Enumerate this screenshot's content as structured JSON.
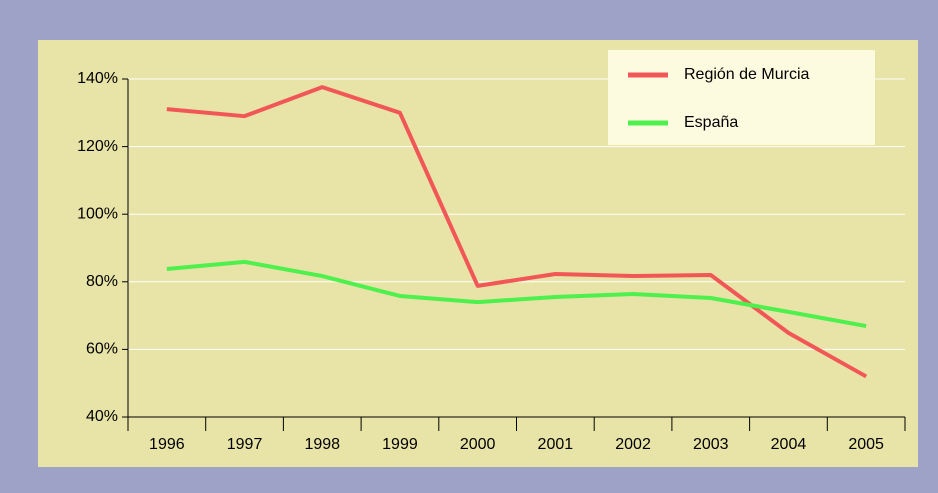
{
  "chart_data": {
    "type": "line",
    "categories": [
      "1996",
      "1997",
      "1998",
      "1999",
      "2000",
      "2001",
      "2002",
      "2003",
      "2004",
      "2005"
    ],
    "series": [
      {
        "name": "Región de Murcia",
        "color": "#f25757",
        "values": [
          131.1,
          129,
          137.6,
          130,
          78.8,
          82.3,
          81.7,
          82,
          64.9,
          52
        ]
      },
      {
        "name": "España",
        "color": "#4df04d",
        "values": [
          83.8,
          85.9,
          81.7,
          75.8,
          74,
          75.5,
          76.4,
          75.2,
          71.1,
          66.9
        ]
      }
    ],
    "ylim": [
      40,
      140
    ],
    "yticks": [
      {
        "value": 40,
        "label": "40%"
      },
      {
        "value": 60,
        "label": "60%"
      },
      {
        "value": 80,
        "label": "80%"
      },
      {
        "value": 100,
        "label": "100%"
      },
      {
        "value": 120,
        "label": "120%"
      },
      {
        "value": 140,
        "label": "140%"
      }
    ],
    "grid": true,
    "legend": "top-right"
  }
}
